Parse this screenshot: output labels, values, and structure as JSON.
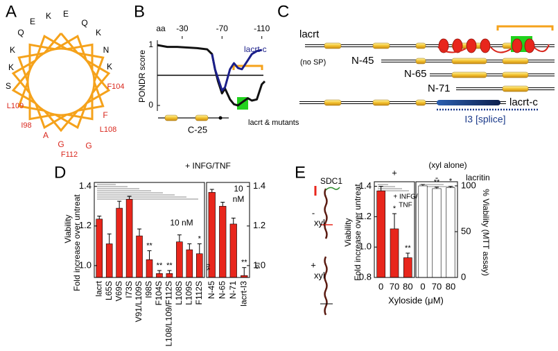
{
  "panel_a": {
    "label": "A",
    "residues": [
      {
        "text": "Q",
        "color": "#000000"
      },
      {
        "text": "E",
        "color": "#000000"
      },
      {
        "text": "K",
        "color": "#000000"
      },
      {
        "text": "E",
        "color": "#000000"
      },
      {
        "text": "Q",
        "color": "#000000"
      },
      {
        "text": "K",
        "color": "#000000"
      },
      {
        "text": "N",
        "color": "#000000"
      },
      {
        "text": "K",
        "color": "#000000"
      },
      {
        "text": "F104",
        "color": "#d9261c"
      },
      {
        "text": "F",
        "color": "#d9261c"
      },
      {
        "text": "L108",
        "color": "#d9261c"
      },
      {
        "text": "G",
        "color": "#d9261c"
      },
      {
        "text": "F112",
        "color": "#d9261c"
      },
      {
        "text": "G",
        "color": "#d9261c"
      },
      {
        "text": "A",
        "color": "#d9261c"
      },
      {
        "text": "I98",
        "color": "#d9261c"
      },
      {
        "text": "L109",
        "color": "#d9261c"
      },
      {
        "text": "S",
        "color": "#000000"
      },
      {
        "text": "K",
        "color": "#000000"
      },
      {
        "text": "K",
        "color": "#000000"
      }
    ]
  },
  "panel_c": {
    "label": "C",
    "rows": [
      "lacrt",
      "(no SP)",
      "N-45",
      "N-65",
      "N-71",
      "lacrt-c"
    ],
    "splice": "I3 [splice]"
  },
  "schematic_e": {
    "title": "SDC1",
    "labels": [
      "-",
      "xyl",
      "+",
      "xyl"
    ]
  },
  "chart_data": [
    {
      "type": "line",
      "label": "B",
      "x_unit": "aa",
      "ylabel": "PONDR score",
      "gene_label": "C-25",
      "x": [
        -5,
        -15,
        -25,
        -35,
        -45,
        -55,
        -60,
        -63,
        -66,
        -70,
        -73,
        -78,
        -82,
        -86,
        -90,
        -96,
        -100,
        -105,
        -110,
        -113
      ],
      "xlim": [
        -5,
        -113
      ],
      "xticks": [
        -30,
        -70,
        -110
      ],
      "ylim": [
        0,
        1
      ],
      "yticks": [
        0,
        1
      ],
      "reference_line": 0.5,
      "series": [
        {
          "name": "lacrt & mutants",
          "color": "#111111",
          "values": [
            1.0,
            0.97,
            0.97,
            0.96,
            0.95,
            0.93,
            0.85,
            0.6,
            0.4,
            0.2,
            0.28,
            0.1,
            0.02,
            0.0,
            0.05,
            0.12,
            0.08,
            0.1,
            0.35,
            0.4
          ]
        },
        {
          "name": "lacrt-c",
          "color": "#1b1f8a",
          "values": [
            null,
            null,
            null,
            null,
            null,
            null,
            0.85,
            0.6,
            0.45,
            0.25,
            0.3,
            0.6,
            0.7,
            0.62,
            0.6,
            0.75,
            0.85,
            0.9,
            0.92,
            null
          ]
        }
      ]
    },
    {
      "type": "bar",
      "label": "D",
      "title": "+ INFG/TNF",
      "ylabel": "Viability",
      "ylabel_sub": "Fold increase over untreat",
      "ylim": [
        0.94,
        1.42
      ],
      "yticks": [
        1.4,
        1.2,
        {
          "value": 1,
          "label": "1.0"
        }
      ],
      "color": "#e8261c",
      "groups": [
        {
          "categories": [
            "lacrt",
            "L65S",
            "V69S",
            "I73S",
            "V91/L109S",
            "I98S",
            "F104S",
            "L108/L109/F112S",
            "L108S",
            "L109S",
            "F112S"
          ],
          "values": [
            1.235,
            1.11,
            1.29,
            1.335,
            1.15,
            1.03,
            0.96,
            0.96,
            1.12,
            1.08,
            1.06
          ],
          "errors": [
            0.015,
            0.05,
            0.035,
            0.015,
            0.035,
            0.045,
            0.015,
            0.015,
            0.035,
            0.03,
            0.05
          ],
          "significance": [
            null,
            null,
            null,
            null,
            null,
            "**",
            "**",
            "**",
            null,
            null,
            "*"
          ],
          "note": [
            "10 nM"
          ],
          "side_note": "ns"
        },
        {
          "categories": [
            "N-45",
            "N-65",
            "N-71",
            "lacrt-I3"
          ],
          "values": [
            1.37,
            1.3,
            1.21,
            0.95
          ],
          "errors": [
            0.015,
            0.02,
            0.03,
            0.04
          ],
          "significance": [
            null,
            null,
            null,
            "**"
          ],
          "note": [
            "10",
            "nM"
          ],
          "side_note": "ns"
        }
      ]
    },
    {
      "type": "bar",
      "label": "E",
      "xlabel": "Xyloside (μM)",
      "ylabel": "Viability",
      "ylabel_sub": "Fold increase over untreat",
      "y2label": "% Viability (MTT assay)",
      "extra_label": "lacritin",
      "ylim": [
        0.8,
        1.43
      ],
      "yticks": [
        1.4,
        1.2,
        {
          "value": 1,
          "label": "1.0"
        },
        0.8
      ],
      "y2lim": [
        0,
        104.5
      ],
      "y2ticks": [
        0,
        50,
        100
      ],
      "groups": [
        {
          "heading": "+",
          "note": [
            "+ INFG/",
            "TNF"
          ],
          "categories": [
            "0",
            "70",
            "80"
          ],
          "values": [
            1.37,
            1.12,
            0.93
          ],
          "errors": [
            0.03,
            0.1,
            0.03
          ],
          "significance": [
            null,
            "*",
            "**"
          ],
          "color": "#e8261c"
        },
        {
          "heading": "-",
          "subheading": "(xyl alone)",
          "axis": "y2",
          "categories": [
            "0",
            "70",
            "80"
          ],
          "values": [
            100,
            97,
            98
          ],
          "errors": [
            1.5,
            1.5,
            1.5
          ],
          "significance": [
            null,
            "**",
            "*"
          ],
          "color": "#ffffff"
        }
      ]
    }
  ]
}
